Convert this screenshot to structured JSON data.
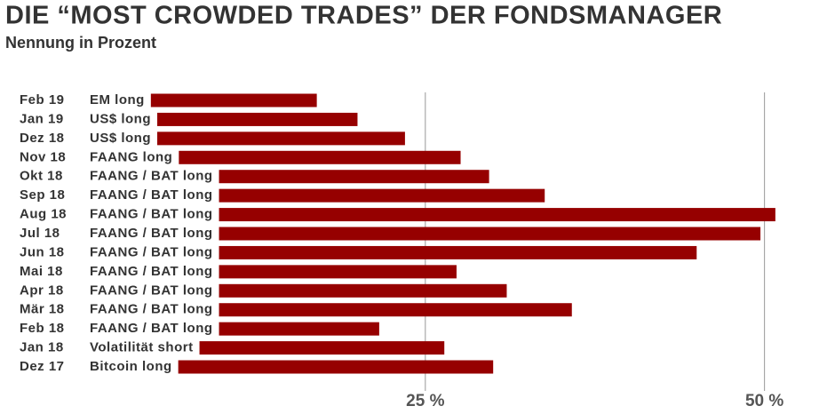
{
  "chart_data": {
    "type": "bar",
    "orientation": "horizontal",
    "title": "DIE “MOST CROWDED TRADES” DER FONDSMANAGER",
    "subtitle": "Nennung in Prozent",
    "categories": [
      "Feb 19",
      "Jan 19",
      "Dez 18",
      "Nov 18",
      "Okt 18",
      "Sep 18",
      "Aug 18",
      "Jul 18",
      "Jun 18",
      "Mai 18",
      "Apr 18",
      "Mär 18",
      "Feb 18",
      "Jan 18",
      "Dez 17"
    ],
    "trades": [
      "EM long",
      "US$ long",
      "US$ long",
      "FAANG long",
      "FAANG / BAT long",
      "FAANG / BAT long",
      "FAANG / BAT long",
      "FAANG / BAT long",
      "FAANG / BAT long",
      "FAANG / BAT long",
      "FAANG / BAT long",
      "FAANG / BAT long",
      "FAANG / BAT long",
      "Volatilität short",
      "Bitcoin long"
    ],
    "values": [
      17,
      20,
      23.5,
      27.6,
      29.7,
      33.8,
      50.8,
      49.7,
      45,
      27.3,
      31,
      35.8,
      21.6,
      26.4,
      30
    ],
    "color": "#960000",
    "xlim": [
      0,
      55
    ],
    "xticks": [
      {
        "value": 25,
        "label": "25 %"
      },
      {
        "value": 50,
        "label": "50 %"
      }
    ],
    "grid": true
  }
}
